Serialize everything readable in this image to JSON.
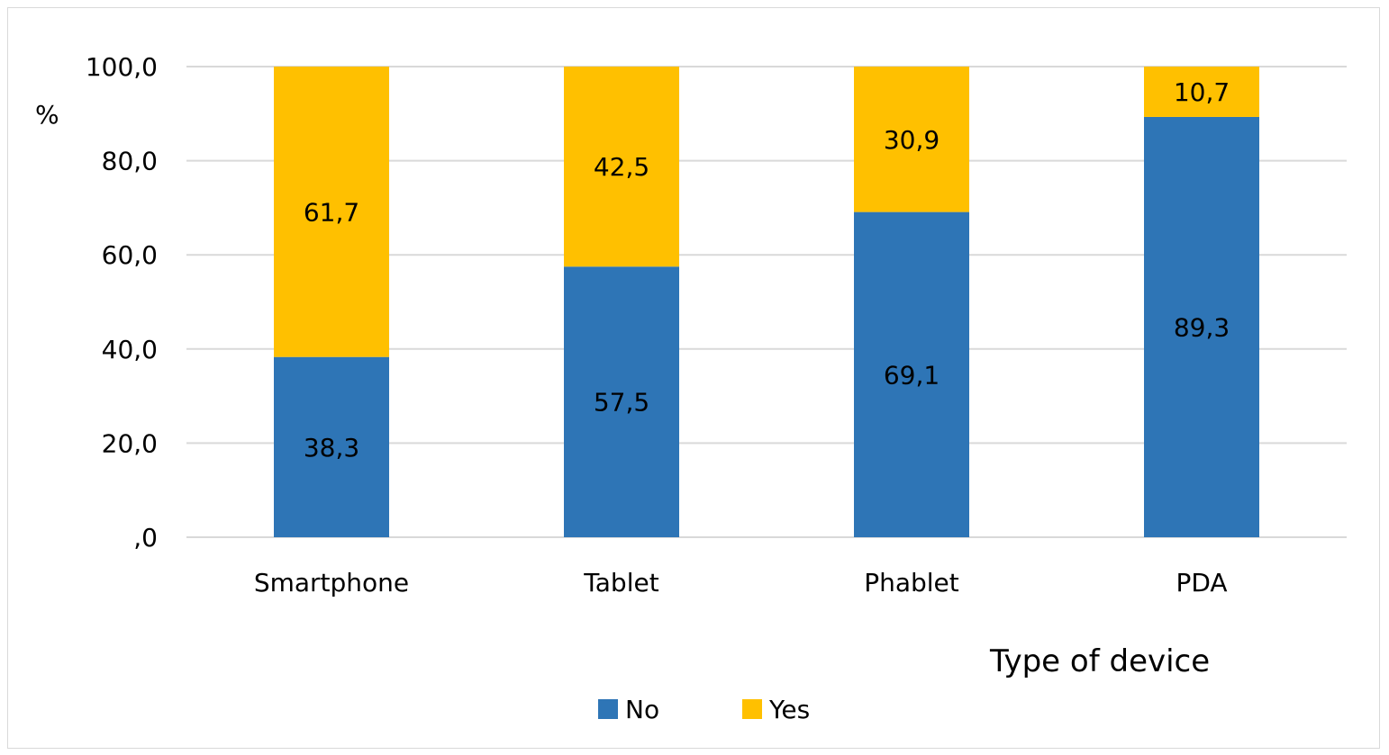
{
  "chart_data": {
    "type": "bar",
    "stacked": true,
    "categories": [
      "Smartphone",
      "Tablet",
      "Phablet",
      "PDA"
    ],
    "series": [
      {
        "name": "No",
        "color": "#2e75b6",
        "values": [
          38.3,
          57.5,
          69.1,
          89.3
        ],
        "labels": [
          "38,3",
          "57,5",
          "69,1",
          "89,3"
        ]
      },
      {
        "name": "Yes",
        "color": "#ffc000",
        "values": [
          61.7,
          42.5,
          30.9,
          10.7
        ],
        "labels": [
          "61,7",
          "42,5",
          "30,9",
          "10,7"
        ]
      }
    ],
    "ylim": [
      0,
      100
    ],
    "yticks": [
      0,
      20,
      40,
      60,
      80,
      100
    ],
    "ytick_labels": [
      ",0",
      "20,0",
      "40,0",
      "60,0",
      "80,0",
      "100,0"
    ],
    "ylabel": "%",
    "xlabel": "Type of device",
    "grid": true,
    "legend_position": "bottom"
  }
}
